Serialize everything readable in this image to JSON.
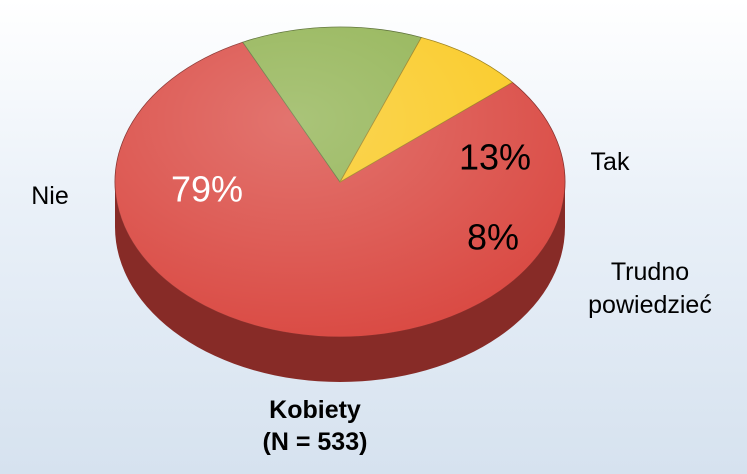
{
  "chart_data": {
    "type": "pie",
    "title": "Kobiety",
    "subtitle": "(N = 533)",
    "categories": [
      "Nie",
      "Tak",
      "Trudno powiedzieć"
    ],
    "values": [
      79,
      13,
      8
    ],
    "value_labels": [
      "79%",
      "13%",
      "8%"
    ],
    "colors": [
      "#d9463f",
      "#8db04c",
      "#f9c81c"
    ],
    "legend": false
  }
}
